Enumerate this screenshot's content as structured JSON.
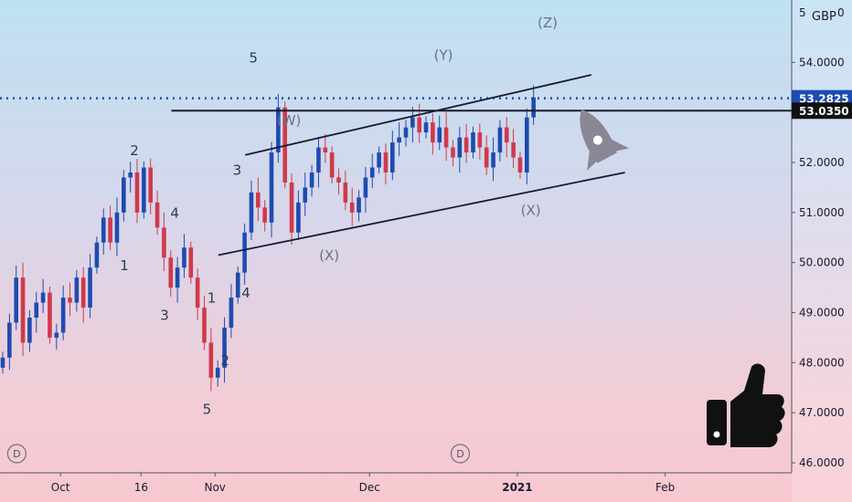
{
  "chart_data": {
    "type": "candlestick",
    "currency": "GBP",
    "currency_suffix": "0",
    "scale_top_label": "5",
    "yticks": [
      54,
      53,
      52,
      51,
      50,
      49,
      48,
      47,
      46
    ],
    "ylim": [
      45.8,
      55.1
    ],
    "x_ticks": [
      {
        "label": "Oct",
        "idx": 9,
        "bold": false
      },
      {
        "label": "16",
        "idx": 21,
        "bold": false
      },
      {
        "label": "Nov",
        "idx": 32,
        "bold": false
      },
      {
        "label": "Dec",
        "idx": 55,
        "bold": false
      },
      {
        "label": "2021",
        "idx": 77,
        "bold": true
      },
      {
        "label": "Feb",
        "idx": 99,
        "bold": false
      }
    ],
    "price_labels": [
      {
        "value": "53.2825",
        "price": 53.2825,
        "style": "blue"
      },
      {
        "value": "53.0350",
        "price": 53.035,
        "style": "black"
      }
    ],
    "hline_dotted": 53.2825,
    "hline_solid": {
      "price": 53.035,
      "from_idx": 25.5
    },
    "channel_upper": [
      [
        36.5,
        52.15
      ],
      [
        88,
        53.75
      ]
    ],
    "channel_lower": [
      [
        32.5,
        50.15
      ],
      [
        93,
        51.8
      ]
    ],
    "closes": [
      48.1,
      48.8,
      49.7,
      48.4,
      48.9,
      49.2,
      49.4,
      48.5,
      48.6,
      49.3,
      49.2,
      49.7,
      49.1,
      49.9,
      50.4,
      50.9,
      50.4,
      51.0,
      51.7,
      51.8,
      51.0,
      51.9,
      51.2,
      50.7,
      50.1,
      49.5,
      49.9,
      50.3,
      49.7,
      49.1,
      48.4,
      47.7,
      47.9,
      48.7,
      49.3,
      49.8,
      50.6,
      51.4,
      51.1,
      50.8,
      52.2,
      53.1,
      51.6,
      50.6,
      51.2,
      51.5,
      51.8,
      52.3,
      52.2,
      51.7,
      51.6,
      51.2,
      51.0,
      51.3,
      51.7,
      51.9,
      52.2,
      51.8,
      52.4,
      52.5,
      52.7,
      52.9,
      52.6,
      52.8,
      52.4,
      52.7,
      52.3,
      52.1,
      52.5,
      52.2,
      52.6,
      52.3,
      51.9,
      52.2,
      52.7,
      52.4,
      52.1,
      51.8,
      52.9,
      53.3
    ],
    "waves": [
      {
        "label": "2",
        "idx": 20,
        "price": 52.15,
        "gray": false
      },
      {
        "label": "1",
        "idx": 18.5,
        "price": 49.85,
        "gray": false
      },
      {
        "label": "4",
        "idx": 26,
        "price": 50.9,
        "gray": false
      },
      {
        "label": "3",
        "idx": 24.5,
        "price": 48.85,
        "gray": false
      },
      {
        "label": "1",
        "idx": 31.5,
        "price": 49.2,
        "gray": false
      },
      {
        "label": "2",
        "idx": 33.5,
        "price": 47.95,
        "gray": false
      },
      {
        "label": "5",
        "idx": 30.8,
        "price": 46.98,
        "gray": false
      },
      {
        "label": "3",
        "idx": 35.3,
        "price": 51.75,
        "gray": false
      },
      {
        "label": "4",
        "idx": 36.6,
        "price": 49.3,
        "gray": false
      },
      {
        "label": "5",
        "idx": 37.7,
        "price": 54.0,
        "gray": false
      },
      {
        "label": "(W)",
        "idx": 43,
        "price": 52.75,
        "gray": true
      },
      {
        "label": "(X)",
        "idx": 49,
        "price": 50.05,
        "gray": true
      },
      {
        "label": "(Y)",
        "idx": 66,
        "price": 54.05,
        "gray": true
      },
      {
        "label": "(X)",
        "idx": 79,
        "price": 50.95,
        "gray": true
      },
      {
        "label": "(Z)",
        "idx": 81.5,
        "price": 54.7,
        "gray": true
      }
    ],
    "dividend_badges": [
      {
        "label": "D",
        "idx": 2.5
      },
      {
        "label": "D",
        "idx": 68.5
      }
    ],
    "colors": {
      "up": "#1e4bb0",
      "down": "#d03a4a",
      "line": "#1a1a2e",
      "dotted": "#1e4bb0"
    }
  }
}
